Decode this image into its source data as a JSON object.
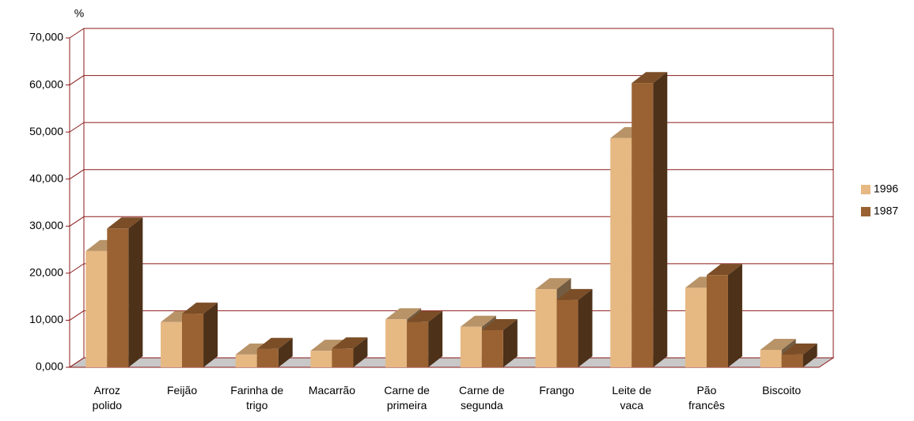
{
  "chart_data": {
    "type": "bar3d",
    "y_label": "%",
    "categories": [
      "Arroz polido",
      "Feijão",
      "Farinha de trigo",
      "Macarrão",
      "Carne de primeira",
      "Carne de segunda",
      "Frango",
      "Leite de vaca",
      "Pão francês",
      "Biscoito"
    ],
    "series": [
      {
        "name": "1996",
        "color": "#e6b882",
        "values": [
          24.7,
          9.6,
          2.7,
          3.5,
          10.2,
          8.6,
          16.6,
          48.7,
          16.9,
          3.7
        ]
      },
      {
        "name": "1987",
        "color": "#9a6232",
        "values": [
          29.5,
          11.4,
          3.9,
          4.0,
          9.6,
          7.9,
          14.3,
          60.4,
          19.6,
          2.7
        ]
      }
    ],
    "ylim": [
      0,
      70
    ],
    "yticks": [
      {
        "value": 0,
        "label": "0,000"
      },
      {
        "value": 10,
        "label": "10,000"
      },
      {
        "value": 20,
        "label": "20,000"
      },
      {
        "value": 30,
        "label": "30,000"
      },
      {
        "value": 40,
        "label": "40,000"
      },
      {
        "value": 50,
        "label": "50,000"
      },
      {
        "value": 60,
        "label": "60,000"
      },
      {
        "value": 70,
        "label": "70,000"
      }
    ],
    "grid": true,
    "legend": "right"
  }
}
